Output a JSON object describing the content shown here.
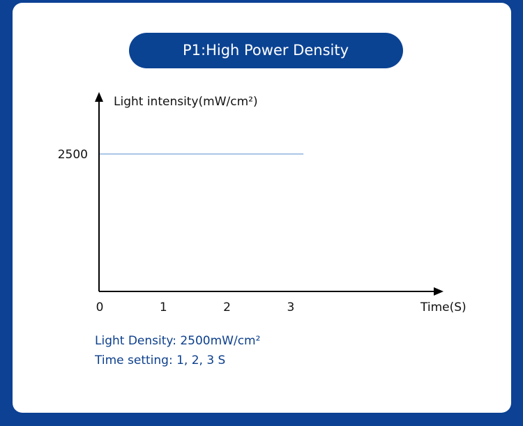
{
  "chart_data": {
    "type": "line",
    "title": "P1:High Power Density",
    "y_label": "Light intensity(mW/cm²)",
    "x_label": "Time(S)",
    "x": [
      0,
      3.2
    ],
    "series": [
      {
        "color": "#8fb3de",
        "values": [
          2500,
          2500
        ]
      }
    ],
    "xlim": [
      0,
      5.4
    ],
    "ylim": [
      0,
      3500
    ],
    "xticks": [
      0,
      1,
      2,
      3
    ],
    "yticks": [
      2500
    ],
    "notes": [
      "Light Density: 2500mW/cm²",
      "Time setting: 1, 2, 3 S"
    ]
  }
}
